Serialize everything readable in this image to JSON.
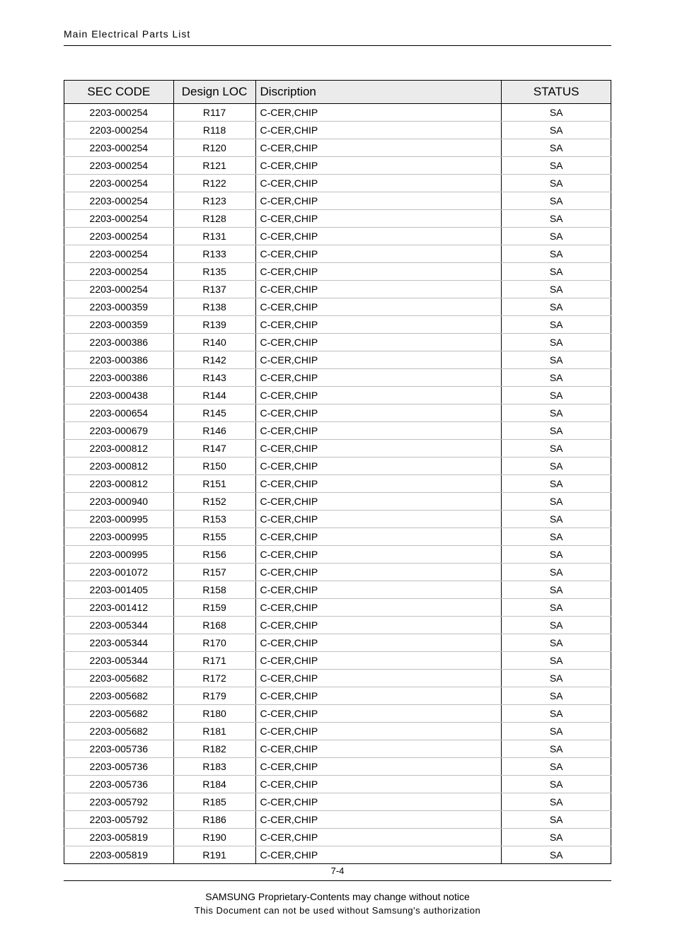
{
  "header": {
    "title": "Main Electrical Parts List"
  },
  "table": {
    "columns": [
      {
        "key": "sec_code",
        "label": "SEC CODE",
        "class": "col-sec"
      },
      {
        "key": "design_loc",
        "label": "Design LOC",
        "class": "col-loc"
      },
      {
        "key": "description",
        "label": "Discription",
        "class": "col-desc"
      },
      {
        "key": "status",
        "label": "STATUS",
        "class": "col-status"
      }
    ],
    "rows": [
      {
        "sec_code": "2203-000254",
        "design_loc": "R117",
        "description": "C-CER,CHIP",
        "status": "SA"
      },
      {
        "sec_code": "2203-000254",
        "design_loc": "R118",
        "description": "C-CER,CHIP",
        "status": "SA"
      },
      {
        "sec_code": "2203-000254",
        "design_loc": "R120",
        "description": "C-CER,CHIP",
        "status": "SA"
      },
      {
        "sec_code": "2203-000254",
        "design_loc": "R121",
        "description": "C-CER,CHIP",
        "status": "SA"
      },
      {
        "sec_code": "2203-000254",
        "design_loc": "R122",
        "description": "C-CER,CHIP",
        "status": "SA"
      },
      {
        "sec_code": "2203-000254",
        "design_loc": "R123",
        "description": "C-CER,CHIP",
        "status": "SA"
      },
      {
        "sec_code": "2203-000254",
        "design_loc": "R128",
        "description": "C-CER,CHIP",
        "status": "SA"
      },
      {
        "sec_code": "2203-000254",
        "design_loc": "R131",
        "description": "C-CER,CHIP",
        "status": "SA"
      },
      {
        "sec_code": "2203-000254",
        "design_loc": "R133",
        "description": "C-CER,CHIP",
        "status": "SA"
      },
      {
        "sec_code": "2203-000254",
        "design_loc": "R135",
        "description": "C-CER,CHIP",
        "status": "SA"
      },
      {
        "sec_code": "2203-000254",
        "design_loc": "R137",
        "description": "C-CER,CHIP",
        "status": "SA"
      },
      {
        "sec_code": "2203-000359",
        "design_loc": "R138",
        "description": "C-CER,CHIP",
        "status": "SA"
      },
      {
        "sec_code": "2203-000359",
        "design_loc": "R139",
        "description": "C-CER,CHIP",
        "status": "SA"
      },
      {
        "sec_code": "2203-000386",
        "design_loc": "R140",
        "description": "C-CER,CHIP",
        "status": "SA"
      },
      {
        "sec_code": "2203-000386",
        "design_loc": "R142",
        "description": "C-CER,CHIP",
        "status": "SA"
      },
      {
        "sec_code": "2203-000386",
        "design_loc": "R143",
        "description": "C-CER,CHIP",
        "status": "SA"
      },
      {
        "sec_code": "2203-000438",
        "design_loc": "R144",
        "description": "C-CER,CHIP",
        "status": "SA"
      },
      {
        "sec_code": "2203-000654",
        "design_loc": "R145",
        "description": "C-CER,CHIP",
        "status": "SA"
      },
      {
        "sec_code": "2203-000679",
        "design_loc": "R146",
        "description": "C-CER,CHIP",
        "status": "SA"
      },
      {
        "sec_code": "2203-000812",
        "design_loc": "R147",
        "description": "C-CER,CHIP",
        "status": "SA"
      },
      {
        "sec_code": "2203-000812",
        "design_loc": "R150",
        "description": "C-CER,CHIP",
        "status": "SA"
      },
      {
        "sec_code": "2203-000812",
        "design_loc": "R151",
        "description": "C-CER,CHIP",
        "status": "SA"
      },
      {
        "sec_code": "2203-000940",
        "design_loc": "R152",
        "description": "C-CER,CHIP",
        "status": "SA"
      },
      {
        "sec_code": "2203-000995",
        "design_loc": "R153",
        "description": "C-CER,CHIP",
        "status": "SA"
      },
      {
        "sec_code": "2203-000995",
        "design_loc": "R155",
        "description": "C-CER,CHIP",
        "status": "SA"
      },
      {
        "sec_code": "2203-000995",
        "design_loc": "R156",
        "description": "C-CER,CHIP",
        "status": "SA"
      },
      {
        "sec_code": "2203-001072",
        "design_loc": "R157",
        "description": "C-CER,CHIP",
        "status": "SA"
      },
      {
        "sec_code": "2203-001405",
        "design_loc": "R158",
        "description": "C-CER,CHIP",
        "status": "SA"
      },
      {
        "sec_code": "2203-001412",
        "design_loc": "R159",
        "description": "C-CER,CHIP",
        "status": "SA"
      },
      {
        "sec_code": "2203-005344",
        "design_loc": "R168",
        "description": "C-CER,CHIP",
        "status": "SA"
      },
      {
        "sec_code": "2203-005344",
        "design_loc": "R170",
        "description": "C-CER,CHIP",
        "status": "SA"
      },
      {
        "sec_code": "2203-005344",
        "design_loc": "R171",
        "description": "C-CER,CHIP",
        "status": "SA"
      },
      {
        "sec_code": "2203-005682",
        "design_loc": "R172",
        "description": "C-CER,CHIP",
        "status": "SA"
      },
      {
        "sec_code": "2203-005682",
        "design_loc": "R179",
        "description": "C-CER,CHIP",
        "status": "SA"
      },
      {
        "sec_code": "2203-005682",
        "design_loc": "R180",
        "description": "C-CER,CHIP",
        "status": "SA"
      },
      {
        "sec_code": "2203-005682",
        "design_loc": "R181",
        "description": "C-CER,CHIP",
        "status": "SA"
      },
      {
        "sec_code": "2203-005736",
        "design_loc": "R182",
        "description": "C-CER,CHIP",
        "status": "SA"
      },
      {
        "sec_code": "2203-005736",
        "design_loc": "R183",
        "description": "C-CER,CHIP",
        "status": "SA"
      },
      {
        "sec_code": "2203-005736",
        "design_loc": "R184",
        "description": "C-CER,CHIP",
        "status": "SA"
      },
      {
        "sec_code": "2203-005792",
        "design_loc": "R185",
        "description": "C-CER,CHIP",
        "status": "SA"
      },
      {
        "sec_code": "2203-005792",
        "design_loc": "R186",
        "description": "C-CER,CHIP",
        "status": "SA"
      },
      {
        "sec_code": "2203-005819",
        "design_loc": "R190",
        "description": "C-CER,CHIP",
        "status": "SA"
      },
      {
        "sec_code": "2203-005819",
        "design_loc": "R191",
        "description": "C-CER,CHIP",
        "status": "SA"
      }
    ]
  },
  "page_number": "7-4",
  "footer": {
    "line1": "SAMSUNG Proprietary-Contents may change without notice",
    "line2": "This Document can not be used without Samsung's authorization"
  },
  "styles": {
    "header_bg": "#ebebeb",
    "border_color": "#000000",
    "row_border_color": "#bfbfbf",
    "header_fontsize": 17,
    "cell_fontsize": 14,
    "footer_fontsize1": 14,
    "footer_fontsize2": 13
  }
}
